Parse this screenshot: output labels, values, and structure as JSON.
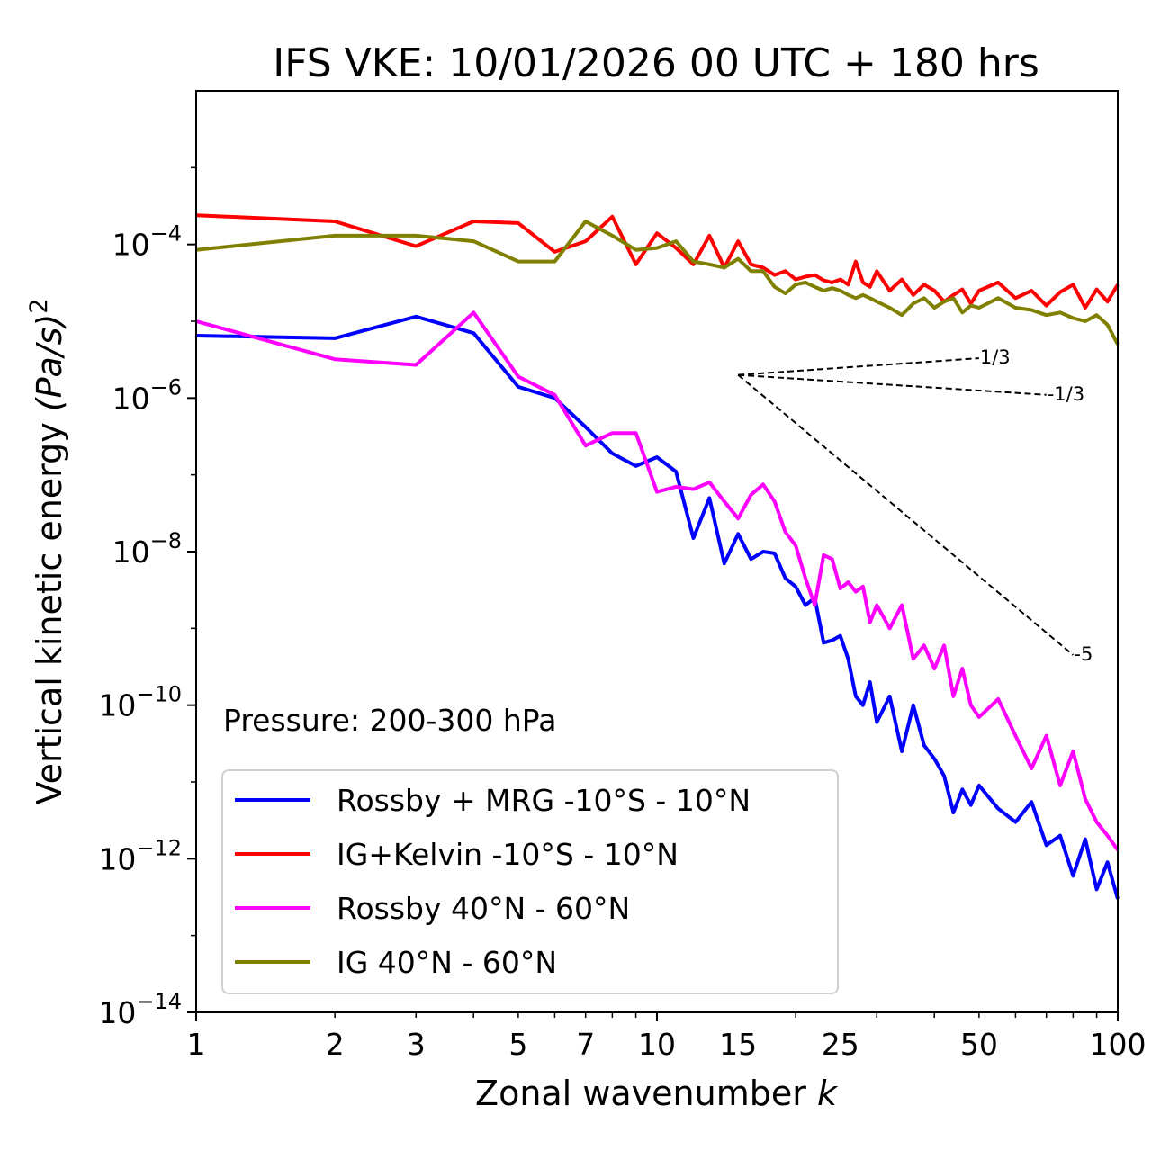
{
  "chart_data": {
    "type": "line",
    "title": "IFS VKE: 10/01/2026 00 UTC + 180 hrs",
    "xlabel_text": "Zonal wavenumber ",
    "xlabel_italic": "k",
    "ylabel_text": "Vertical kinetic energy ",
    "ylabel_math": "(Pa/s)",
    "ylabel_exp": "2",
    "xscale": "log",
    "yscale": "log",
    "xlim": [
      1,
      100
    ],
    "ylim": [
      1e-14,
      0.01
    ],
    "x_ticks": [
      1,
      2,
      3,
      5,
      7,
      10,
      15,
      25,
      50,
      100
    ],
    "x_tick_labels": [
      "1",
      "2",
      "3",
      "5",
      "7",
      "10",
      "15",
      "25",
      "50",
      "100"
    ],
    "y_ticks": [
      {
        "value": 0.0001,
        "base": "10",
        "exp": "−4"
      },
      {
        "value": 1e-06,
        "base": "10",
        "exp": "−6"
      },
      {
        "value": 1e-08,
        "base": "10",
        "exp": "−8"
      },
      {
        "value": 1e-10,
        "base": "10",
        "exp": "−10"
      },
      {
        "value": 1e-12,
        "base": "10",
        "exp": "−12"
      },
      {
        "value": 1e-14,
        "base": "10",
        "exp": "−14"
      }
    ],
    "annotation": "Pressure: 200-300 hPa",
    "legend_position": "lower-left",
    "series": [
      {
        "name": "Rossby + MRG -10°S - 10°N",
        "color": "#0000ff",
        "x": [
          1,
          2,
          3,
          4,
          5,
          6,
          7,
          8,
          9,
          10,
          11,
          12,
          13,
          14,
          15,
          16,
          17,
          18,
          19,
          20,
          21,
          22,
          23,
          24,
          25,
          26,
          27,
          28,
          29,
          30,
          32,
          34,
          36,
          38,
          40,
          42,
          44,
          46,
          48,
          50,
          55,
          60,
          65,
          70,
          75,
          80,
          85,
          90,
          95,
          100
        ],
        "values": [
          6.5e-06,
          6e-06,
          1.15e-05,
          7e-06,
          1.4e-06,
          1e-06,
          4.2e-07,
          1.9e-07,
          1.3e-07,
          1.7e-07,
          1.1e-07,
          1.5e-08,
          5e-08,
          7e-09,
          1.7e-08,
          8e-09,
          1e-08,
          9.5e-09,
          4.5e-09,
          3.5e-09,
          2e-09,
          2.5e-09,
          6.5e-10,
          7e-10,
          8e-10,
          4e-10,
          1.3e-10,
          1e-10,
          2e-10,
          6e-11,
          1.3e-10,
          2.5e-11,
          1e-10,
          3e-11,
          2e-11,
          1.2e-11,
          4e-12,
          8e-12,
          5e-12,
          9e-12,
          4.5e-12,
          3e-12,
          5.5e-12,
          1.5e-12,
          2e-12,
          6e-13,
          1.8e-12,
          4e-13,
          9e-13,
          3e-13
        ]
      },
      {
        "name": "IG+Kelvin -10°S - 10°N",
        "color": "#ff0000",
        "x": [
          1,
          2,
          3,
          4,
          5,
          6,
          7,
          8,
          9,
          10,
          11,
          12,
          13,
          14,
          15,
          16,
          17,
          18,
          19,
          20,
          21,
          22,
          23,
          24,
          25,
          26,
          27,
          28,
          29,
          30,
          32,
          34,
          36,
          38,
          40,
          42,
          44,
          46,
          48,
          50,
          55,
          60,
          65,
          70,
          75,
          80,
          85,
          90,
          95,
          100
        ],
        "values": [
          0.00024,
          0.0002,
          9.5e-05,
          0.0002,
          0.00019,
          8e-05,
          0.00011,
          0.00023,
          5.5e-05,
          0.00014,
          9e-05,
          5.5e-05,
          0.00013,
          5e-05,
          0.00011,
          5.5e-05,
          5e-05,
          4e-05,
          4.5e-05,
          3.5e-05,
          3.8e-05,
          4e-05,
          3.4e-05,
          3.2e-05,
          3.5e-05,
          3e-05,
          6e-05,
          3.2e-05,
          2.8e-05,
          4.5e-05,
          2.5e-05,
          3.5e-05,
          2.2e-05,
          3e-05,
          2.5e-05,
          1.8e-05,
          2.2e-05,
          2.6e-05,
          1.7e-05,
          2.5e-05,
          3.2e-05,
          2e-05,
          2.5e-05,
          1.6e-05,
          2.4e-05,
          3e-05,
          1.5e-05,
          2.6e-05,
          1.8e-05,
          3e-05
        ]
      },
      {
        "name": "Rossby 40°N - 60°N",
        "color": "#ff00ff",
        "x": [
          1,
          2,
          3,
          4,
          5,
          6,
          7,
          8,
          9,
          10,
          11,
          12,
          13,
          14,
          15,
          16,
          17,
          18,
          19,
          20,
          21,
          22,
          23,
          24,
          25,
          26,
          27,
          28,
          29,
          30,
          32,
          34,
          36,
          38,
          40,
          42,
          44,
          46,
          48,
          50,
          55,
          60,
          65,
          70,
          75,
          80,
          85,
          90,
          95,
          100
        ],
        "values": [
          1e-05,
          3.2e-06,
          2.7e-06,
          1.3e-05,
          1.9e-06,
          1.1e-06,
          2.4e-07,
          3.5e-07,
          3.5e-07,
          6e-08,
          7e-08,
          6.5e-08,
          8e-08,
          4.5e-08,
          2.7e-08,
          5.5e-08,
          7.5e-08,
          4.5e-08,
          1.8e-08,
          1.2e-08,
          4.5e-09,
          2e-09,
          9e-09,
          8e-09,
          3.3e-09,
          4e-09,
          3e-09,
          3.5e-09,
          1.2e-09,
          2e-09,
          1e-09,
          2e-09,
          4e-10,
          6e-10,
          3e-10,
          6e-10,
          1.3e-10,
          3e-10,
          1e-10,
          7e-11,
          1.2e-10,
          4e-11,
          1.5e-11,
          4e-11,
          9e-12,
          2.5e-11,
          6e-12,
          3e-12,
          2e-12,
          1.3e-12
        ]
      },
      {
        "name": "IG 40°N - 60°N",
        "color": "#808000",
        "x": [
          1,
          2,
          3,
          4,
          5,
          6,
          7,
          8,
          9,
          10,
          11,
          12,
          13,
          14,
          15,
          16,
          17,
          18,
          19,
          20,
          21,
          22,
          23,
          24,
          25,
          26,
          27,
          28,
          29,
          30,
          32,
          34,
          36,
          38,
          40,
          42,
          44,
          46,
          48,
          50,
          55,
          60,
          65,
          70,
          75,
          80,
          85,
          90,
          95,
          100
        ],
        "values": [
          8.5e-05,
          0.00013,
          0.00013,
          0.00011,
          6e-05,
          6e-05,
          0.0002,
          0.00013,
          8.5e-05,
          9e-05,
          0.00011,
          6e-05,
          5.5e-05,
          5e-05,
          6.5e-05,
          4.5e-05,
          4.5e-05,
          2.8e-05,
          2.3e-05,
          3e-05,
          3.2e-05,
          2.8e-05,
          2.5e-05,
          2.7e-05,
          2.5e-05,
          2.2e-05,
          2e-05,
          2.2e-05,
          2e-05,
          1.8e-05,
          1.5e-05,
          1.2e-05,
          1.7e-05,
          2e-05,
          1.5e-05,
          1.8e-05,
          2e-05,
          1.3e-05,
          1.6e-05,
          1.5e-05,
          2e-05,
          1.5e-05,
          1.4e-05,
          1.2e-05,
          1.3e-05,
          1.1e-05,
          1e-05,
          1.2e-05,
          9e-06,
          5e-06
        ]
      }
    ],
    "reference_lines": [
      {
        "label": "1/3",
        "x": [
          15,
          50
        ],
        "y": [
          2e-06,
          3.3e-06
        ]
      },
      {
        "label": "-1/3",
        "x": [
          15,
          70
        ],
        "y": [
          2e-06,
          1.1e-06
        ]
      },
      {
        "label": "-5",
        "x": [
          15,
          80
        ],
        "y": [
          2e-06,
          4.5e-10
        ]
      }
    ]
  }
}
